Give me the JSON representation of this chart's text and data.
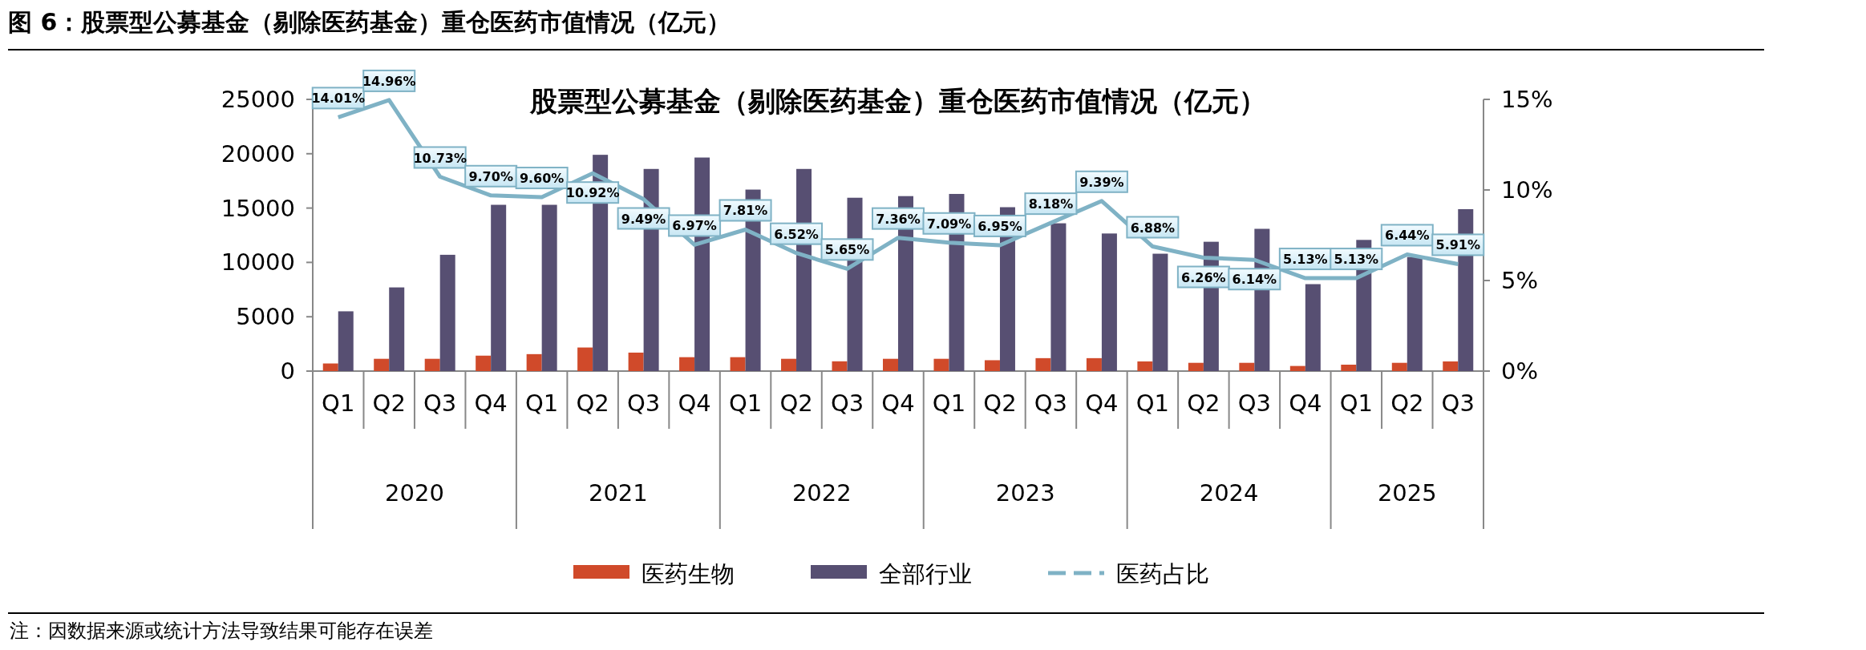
{
  "chart_data": {
    "type": "bar",
    "title": "图 6：股票型公募基金（剔除医药基金）重仓医药市值情况（亿元）",
    "subtitle": "股票型公募基金（剔除医药基金）重仓医药市值情况（亿元）",
    "categories": [
      "Q1",
      "Q2",
      "Q3",
      "Q4",
      "Q1",
      "Q2",
      "Q3",
      "Q4",
      "Q1",
      "Q2",
      "Q3",
      "Q4",
      "Q1",
      "Q2",
      "Q3",
      "Q4",
      "Q1",
      "Q2",
      "Q3",
      "Q4",
      "Q1",
      "Q2",
      "Q3"
    ],
    "series": [
      {
        "name": "医药生物",
        "color": "#d04a2a",
        "values": [
          700,
          1130,
          1130,
          1420,
          1560,
          2170,
          1700,
          1280,
          1280,
          1130,
          900,
          1130,
          1130,
          1000,
          1190,
          1190,
          890,
          760,
          760,
          470,
          590,
          760,
          890
        ]
      },
      {
        "name": "全部行业",
        "color": "#574f72",
        "values": [
          5500,
          7700,
          10700,
          15300,
          15300,
          19900,
          18600,
          19650,
          16700,
          18600,
          15950,
          16100,
          16300,
          15080,
          13600,
          12660,
          10800,
          11900,
          13090,
          8000,
          12070,
          10500,
          14900
        ]
      },
      {
        "name": "医药占比",
        "type": "line",
        "axis": "y2",
        "color": "#7fb2c5",
        "values": [
          14.01,
          14.96,
          10.73,
          9.7,
          9.6,
          10.92,
          9.49,
          6.97,
          7.81,
          6.52,
          5.65,
          7.36,
          7.09,
          6.95,
          8.18,
          9.39,
          6.88,
          6.26,
          6.14,
          5.13,
          5.13,
          6.44,
          5.91
        ],
        "value_labels": [
          "14.01%",
          "14.96%",
          "10.73%",
          "9.70%",
          "9.60%",
          "10.92%",
          "9.49%",
          "6.97%",
          "7.81%",
          "6.52%",
          "5.65%",
          "7.36%",
          "7.09%",
          "6.95%",
          "8.18%",
          "9.39%",
          "6.88%",
          "6.26%",
          "6.14%",
          "5.13%",
          "5.13%",
          "6.44%",
          "5.91%"
        ]
      }
    ],
    "ylim": [
      0,
      25000
    ],
    "yticks": [
      0,
      5000,
      10000,
      15000,
      20000,
      25000
    ],
    "y2lim": [
      0,
      15
    ],
    "y2ticks": [
      {
        "value": 0,
        "label": "0%"
      },
      {
        "value": 5,
        "label": "5%"
      },
      {
        "value": 10,
        "label": "10%"
      },
      {
        "value": 15,
        "label": "15%"
      }
    ],
    "grid": false,
    "legend": "bottom",
    "annotations": [
      "2020",
      "2021",
      "2022",
      "2023",
      "2024",
      "2025",
      "注：因数据来源或统计方法导致结果可能存在误差"
    ]
  }
}
